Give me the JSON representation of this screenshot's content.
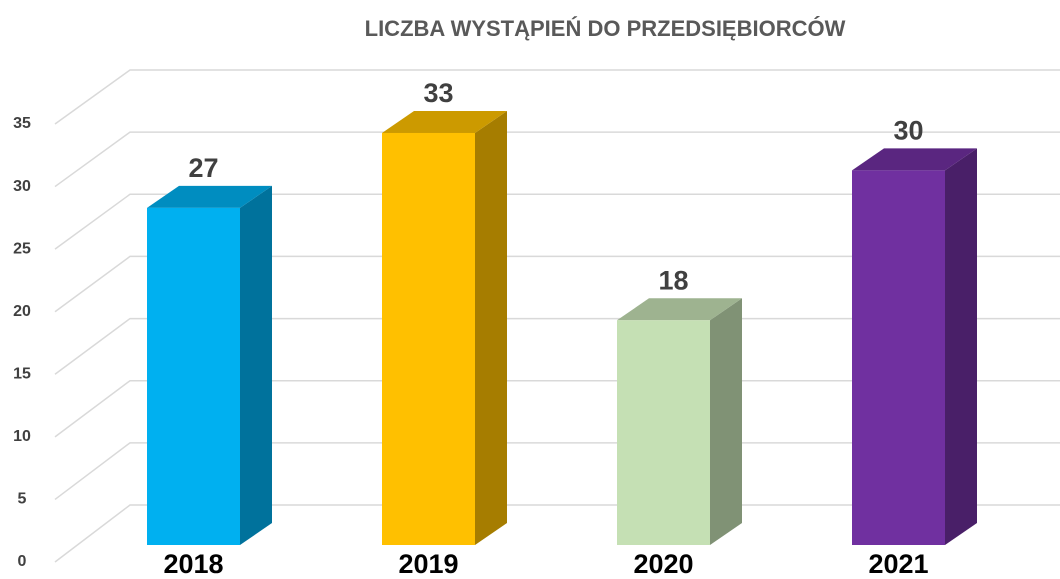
{
  "chart_data": {
    "type": "bar3d",
    "title": "LICZBA WYSTĄPIEŃ DO PRZEDSIĘBIORCÓW",
    "categories": [
      "2018",
      "2019",
      "2020",
      "2021"
    ],
    "values": [
      27,
      33,
      18,
      30
    ],
    "colors": [
      "#00b0f0",
      "#ffc000",
      "#c5e0b4",
      "#7030a0"
    ],
    "ylim": [
      0,
      35
    ],
    "yticks": [
      0,
      5,
      10,
      15,
      20,
      25,
      30,
      35
    ],
    "grid": true
  }
}
